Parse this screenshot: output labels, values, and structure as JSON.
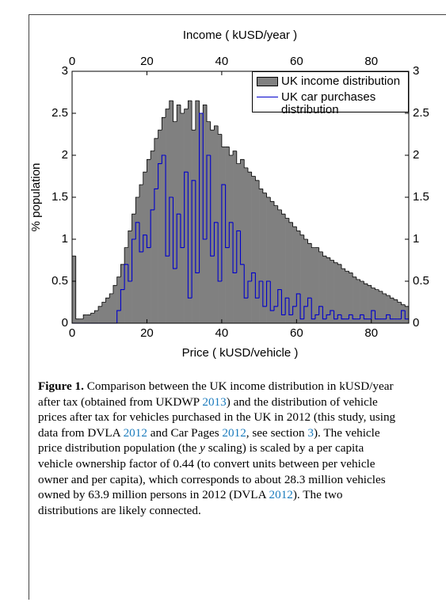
{
  "chart_data": {
    "type": "histogram",
    "xlabel": "Price ( kUSD/vehicle )",
    "x2label": "Income ( kUSD/year )",
    "ylabel": "% population",
    "xlim": [
      0,
      90
    ],
    "xticks": [
      0,
      20,
      40,
      60,
      80
    ],
    "x2lim": [
      0,
      90
    ],
    "x2ticks": [
      0,
      20,
      40,
      60,
      80
    ],
    "ylim": [
      0,
      3
    ],
    "yticks": [
      0,
      0.5,
      1,
      1.5,
      2,
      2.5,
      3
    ],
    "y2lim": [
      0,
      3
    ],
    "y2ticks": [
      0,
      0.5,
      1,
      1.5,
      2,
      2.5,
      3
    ],
    "legend": "upper right",
    "bins": [
      0,
      1,
      2,
      3,
      4,
      5,
      6,
      7,
      8,
      9,
      10,
      11,
      12,
      13,
      14,
      15,
      16,
      17,
      18,
      19,
      20,
      21,
      22,
      23,
      24,
      25,
      26,
      27,
      28,
      29,
      30,
      31,
      32,
      33,
      34,
      35,
      36,
      37,
      38,
      39,
      40,
      41,
      42,
      43,
      44,
      45,
      46,
      47,
      48,
      49,
      50,
      51,
      52,
      53,
      54,
      55,
      56,
      57,
      58,
      59,
      60,
      61,
      62,
      63,
      64,
      65,
      66,
      67,
      68,
      69,
      70,
      71,
      72,
      73,
      74,
      75,
      76,
      77,
      78,
      79,
      80,
      81,
      82,
      83,
      84,
      85,
      86,
      87,
      88,
      89,
      90
    ],
    "series": [
      {
        "name": "UK income distribution",
        "color": "#808080",
        "style": "filled",
        "values": [
          0.8,
          0.05,
          0.05,
          0.1,
          0.1,
          0.12,
          0.15,
          0.2,
          0.25,
          0.3,
          0.35,
          0.45,
          0.55,
          0.7,
          0.9,
          1.1,
          1.3,
          1.5,
          1.65,
          1.8,
          1.95,
          2.05,
          2.2,
          2.3,
          2.45,
          2.55,
          2.65,
          2.4,
          2.6,
          2.5,
          2.55,
          2.65,
          2.3,
          2.65,
          2.5,
          2.6,
          2.4,
          2.3,
          2.35,
          2.25,
          2.1,
          2.1,
          2.0,
          2.05,
          1.9,
          1.95,
          1.85,
          1.8,
          1.75,
          1.7,
          1.6,
          1.55,
          1.5,
          1.45,
          1.4,
          1.35,
          1.3,
          1.25,
          1.2,
          1.15,
          1.1,
          1.05,
          1.0,
          0.95,
          0.9,
          0.9,
          0.85,
          0.8,
          0.78,
          0.75,
          0.72,
          0.7,
          0.65,
          0.62,
          0.6,
          0.55,
          0.52,
          0.5,
          0.47,
          0.45,
          0.42,
          0.4,
          0.38,
          0.35,
          0.33,
          0.3,
          0.28,
          0.25,
          0.22,
          0.2
        ]
      },
      {
        "name": "UK car purchases distribution",
        "color": "#0000cc",
        "style": "step",
        "values": [
          0,
          0,
          0,
          0,
          0,
          0,
          0,
          0,
          0,
          0,
          0,
          0,
          0.15,
          0.4,
          0.7,
          0.5,
          1.0,
          1.2,
          0.85,
          1.05,
          0.9,
          1.35,
          1.6,
          1.9,
          2.0,
          0.8,
          1.5,
          0.65,
          1.3,
          0.9,
          1.8,
          0.3,
          1.7,
          0.6,
          2.5,
          1.0,
          2.0,
          0.8,
          1.2,
          0.5,
          1.65,
          0.9,
          1.2,
          0.6,
          1.1,
          0.7,
          0.3,
          0.5,
          0.6,
          0.3,
          0.5,
          0.2,
          0.5,
          0.15,
          0.2,
          0.4,
          0.1,
          0.3,
          0.1,
          0.2,
          0.35,
          0.05,
          0.2,
          0.3,
          0.05,
          0.1,
          0.2,
          0.05,
          0.1,
          0.15,
          0.05,
          0.1,
          0.05,
          0.05,
          0.1,
          0.05,
          0.05,
          0.1,
          0.05,
          0.05,
          0.15,
          0.05,
          0.05,
          0.05,
          0.1,
          0.05,
          0.05,
          0.05,
          0.15,
          0.05
        ]
      }
    ]
  },
  "caption": {
    "segments": [
      {
        "text": "Figure 1.",
        "style": "bold"
      },
      {
        "text": " Comparison between the UK income distribution in kUSD/year after tax (obtained from UKDWP ",
        "style": "plain"
      },
      {
        "text": "2013",
        "style": "link"
      },
      {
        "text": ") and the distribution of vehicle prices after tax for vehicles purchased in the UK in 2012 (this study, using data from DVLA ",
        "style": "plain"
      },
      {
        "text": "2012",
        "style": "link"
      },
      {
        "text": " and Car Pages ",
        "style": "plain"
      },
      {
        "text": "2012",
        "style": "link"
      },
      {
        "text": ", see section ",
        "style": "plain"
      },
      {
        "text": "3",
        "style": "link"
      },
      {
        "text": "). The vehicle price distribution population (the ",
        "style": "plain"
      },
      {
        "text": "y",
        "style": "italic"
      },
      {
        "text": " scaling) is scaled by a per capita vehicle ownership factor of 0.44 (to convert units between per vehicle owner and per capita), which corresponds to about 28.3 million vehicles owned by 63.9 million persons in 2012 (DVLA ",
        "style": "plain"
      },
      {
        "text": "2012",
        "style": "link"
      },
      {
        "text": "). The two distributions are likely connected.",
        "style": "plain"
      }
    ]
  }
}
